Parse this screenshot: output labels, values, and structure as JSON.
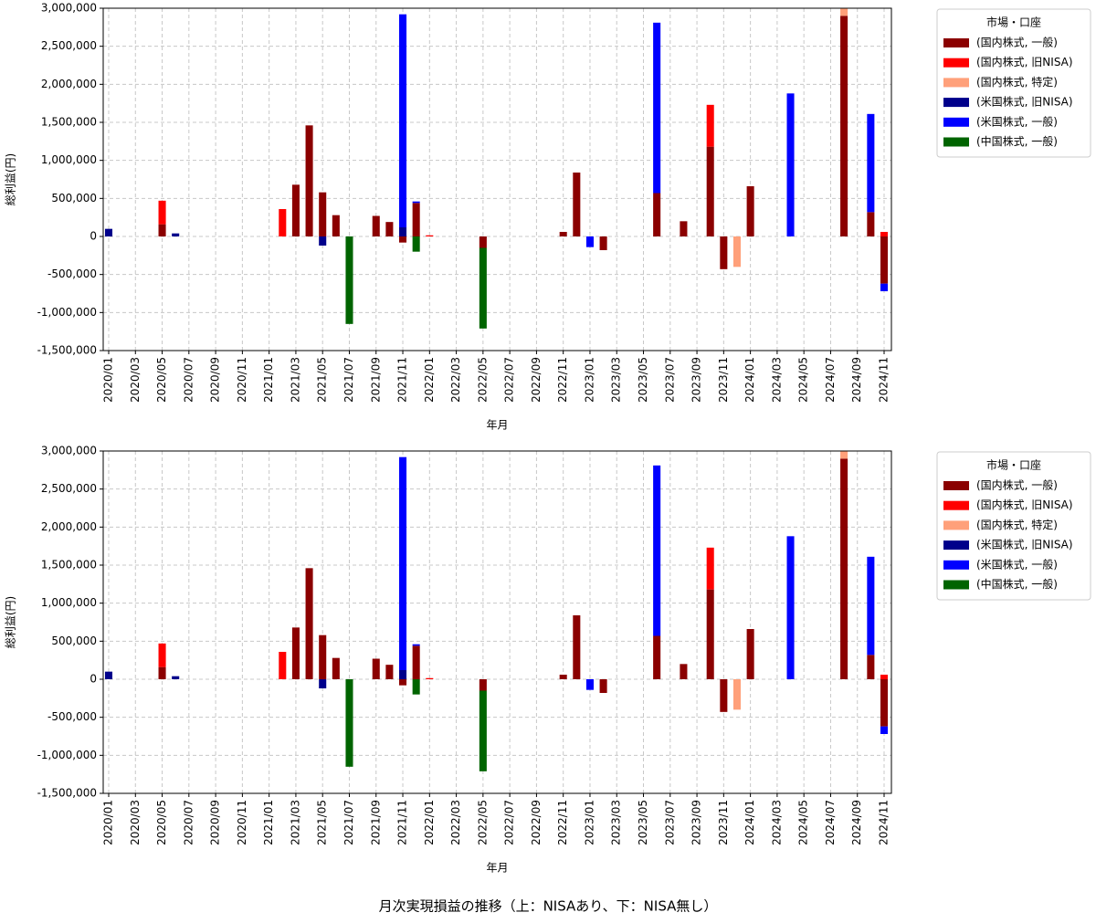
{
  "title": "月次実現損益の推移（上：NISAあり、下：NISA無し）",
  "chart_data": [
    {
      "type": "bar",
      "stacked": true,
      "xlabel": "年月",
      "ylabel": "総利益(円)",
      "legend_title": "市場・口座",
      "grid": true,
      "legend": "outside-right",
      "categories": [
        "2020/01",
        null,
        "2020/03",
        null,
        "2020/05",
        null,
        "2020/07",
        null,
        "2020/09",
        null,
        "2020/11",
        null,
        "2021/01",
        null,
        "2021/03",
        null,
        "2021/05",
        null,
        "2021/07",
        null,
        "2021/09",
        null,
        "2021/11",
        null,
        "2022/01",
        null,
        "2022/03",
        null,
        "2022/05",
        null,
        "2022/07",
        null,
        "2022/09",
        null,
        "2022/11",
        null,
        "2023/01",
        null,
        "2023/03",
        null,
        "2023/05",
        null,
        "2023/07",
        null,
        "2023/09",
        null,
        "2023/11",
        null,
        "2024/01",
        null,
        "2024/03",
        null,
        "2024/05",
        null,
        "2024/07",
        null,
        "2024/09",
        null,
        "2024/11"
      ],
      "ylim": [
        -1500000,
        3000000
      ],
      "yticks": [
        {
          "value": -1500000,
          "label": "-1,500,000"
        },
        {
          "value": -1000000,
          "label": "-1,000,000"
        },
        {
          "value": -500000,
          "label": "-500,000"
        },
        0,
        {
          "value": 500000,
          "label": "500,000"
        },
        {
          "value": 1000000,
          "label": "1,000,000"
        },
        {
          "value": 1500000,
          "label": "1,500,000"
        },
        {
          "value": 2000000,
          "label": "2,000,000"
        },
        {
          "value": 2500000,
          "label": "2,500,000"
        },
        {
          "value": 3000000,
          "label": "3,000,000"
        }
      ],
      "series": [
        {
          "name": "(国内株式, 一般)",
          "color": "#8b0000",
          "values": [
            0,
            0,
            0,
            0,
            160000,
            0,
            0,
            0,
            0,
            0,
            0,
            0,
            0,
            0,
            680000,
            1460000,
            580000,
            280000,
            0,
            0,
            270000,
            190000,
            -80000,
            440000,
            0,
            0,
            0,
            0,
            -150000,
            0,
            0,
            0,
            0,
            0,
            60000,
            840000,
            0,
            -180000,
            0,
            0,
            0,
            570000,
            0,
            200000,
            0,
            1180000,
            -430000,
            0,
            660000,
            0,
            0,
            0,
            0,
            0,
            0,
            2900000,
            0,
            320000,
            -620000
          ]
        },
        {
          "name": "(国内株式, 旧NISA)",
          "color": "#ff0000",
          "values": [
            0,
            0,
            0,
            0,
            310000,
            0,
            0,
            0,
            0,
            0,
            0,
            0,
            0,
            360000,
            0,
            0,
            0,
            0,
            0,
            0,
            0,
            0,
            0,
            0,
            15000,
            0,
            0,
            0,
            0,
            0,
            0,
            0,
            0,
            0,
            0,
            0,
            0,
            0,
            0,
            0,
            0,
            0,
            0,
            0,
            0,
            550000,
            0,
            0,
            0,
            0,
            0,
            0,
            0,
            0,
            0,
            0,
            0,
            0,
            60000
          ]
        },
        {
          "name": "(国内株式, 特定)",
          "color": "#ffa07a",
          "values": [
            0,
            0,
            0,
            0,
            0,
            0,
            0,
            0,
            0,
            0,
            0,
            0,
            0,
            0,
            0,
            0,
            0,
            0,
            0,
            0,
            0,
            0,
            0,
            0,
            0,
            0,
            0,
            0,
            0,
            0,
            0,
            0,
            0,
            0,
            0,
            0,
            0,
            0,
            0,
            0,
            0,
            0,
            0,
            0,
            0,
            0,
            0,
            -400000,
            0,
            0,
            0,
            0,
            0,
            0,
            0,
            150000,
            0,
            0,
            0
          ]
        },
        {
          "name": "(米国株式, 旧NISA)",
          "color": "#00008b",
          "values": [
            100000,
            0,
            0,
            0,
            0,
            40000,
            0,
            0,
            0,
            0,
            0,
            0,
            0,
            0,
            0,
            0,
            -120000,
            0,
            0,
            0,
            0,
            0,
            120000,
            0,
            0,
            0,
            0,
            0,
            0,
            0,
            0,
            0,
            0,
            0,
            0,
            0,
            0,
            0,
            0,
            0,
            0,
            0,
            0,
            0,
            0,
            0,
            0,
            0,
            0,
            0,
            0,
            0,
            0,
            0,
            0,
            0,
            0,
            0,
            0
          ]
        },
        {
          "name": "(米国株式, 一般)",
          "color": "#0000ff",
          "values": [
            0,
            0,
            0,
            0,
            0,
            0,
            0,
            0,
            0,
            0,
            0,
            0,
            0,
            0,
            0,
            0,
            0,
            0,
            0,
            0,
            0,
            0,
            2800000,
            20000,
            0,
            0,
            0,
            0,
            0,
            0,
            0,
            0,
            0,
            0,
            0,
            0,
            -140000,
            0,
            0,
            0,
            0,
            2240000,
            0,
            0,
            0,
            0,
            0,
            0,
            0,
            0,
            0,
            1880000,
            0,
            0,
            0,
            0,
            0,
            1290000,
            -100000
          ]
        },
        {
          "name": "(中国株式, 一般)",
          "color": "#006400",
          "values": [
            0,
            0,
            0,
            0,
            0,
            0,
            0,
            0,
            0,
            0,
            0,
            0,
            0,
            0,
            0,
            0,
            0,
            0,
            -1150000,
            0,
            0,
            0,
            0,
            -200000,
            0,
            0,
            0,
            0,
            -1060000,
            0,
            0,
            0,
            0,
            0,
            0,
            0,
            0,
            0,
            0,
            0,
            0,
            0,
            0,
            0,
            0,
            0,
            0,
            0,
            0,
            0,
            0,
            0,
            0,
            0,
            0,
            0,
            0,
            0,
            0
          ]
        }
      ]
    },
    {
      "type": "bar",
      "stacked": true,
      "xlabel": "年月",
      "ylabel": "総利益(円)",
      "legend_title": "市場・口座",
      "grid": true,
      "legend": "outside-right",
      "categories": [
        "2020/01",
        null,
        "2020/03",
        null,
        "2020/05",
        null,
        "2020/07",
        null,
        "2020/09",
        null,
        "2020/11",
        null,
        "2021/01",
        null,
        "2021/03",
        null,
        "2021/05",
        null,
        "2021/07",
        null,
        "2021/09",
        null,
        "2021/11",
        null,
        "2022/01",
        null,
        "2022/03",
        null,
        "2022/05",
        null,
        "2022/07",
        null,
        "2022/09",
        null,
        "2022/11",
        null,
        "2023/01",
        null,
        "2023/03",
        null,
        "2023/05",
        null,
        "2023/07",
        null,
        "2023/09",
        null,
        "2023/11",
        null,
        "2024/01",
        null,
        "2024/03",
        null,
        "2024/05",
        null,
        "2024/07",
        null,
        "2024/09",
        null,
        "2024/11"
      ],
      "ylim": [
        -1500000,
        3000000
      ],
      "yticks": [
        {
          "value": -1500000,
          "label": "-1,500,000"
        },
        {
          "value": -1000000,
          "label": "-1,000,000"
        },
        {
          "value": -500000,
          "label": "-500,000"
        },
        0,
        {
          "value": 500000,
          "label": "500,000"
        },
        {
          "value": 1000000,
          "label": "1,000,000"
        },
        {
          "value": 1500000,
          "label": "1,500,000"
        },
        {
          "value": 2000000,
          "label": "2,000,000"
        },
        {
          "value": 2500000,
          "label": "2,500,000"
        },
        {
          "value": 3000000,
          "label": "3,000,000"
        }
      ],
      "series": [
        {
          "name": "(国内株式, 一般)",
          "color": "#8b0000",
          "values": [
            0,
            0,
            0,
            0,
            160000,
            0,
            0,
            0,
            0,
            0,
            0,
            0,
            0,
            0,
            680000,
            1460000,
            580000,
            280000,
            0,
            0,
            270000,
            190000,
            -80000,
            440000,
            0,
            0,
            0,
            0,
            -150000,
            0,
            0,
            0,
            0,
            0,
            60000,
            840000,
            0,
            -180000,
            0,
            0,
            0,
            570000,
            0,
            200000,
            0,
            1180000,
            -430000,
            0,
            660000,
            0,
            0,
            0,
            0,
            0,
            0,
            2900000,
            0,
            320000,
            -620000
          ]
        },
        {
          "name": "(国内株式, 旧NISA)",
          "color": "#ff0000",
          "values": [
            0,
            0,
            0,
            0,
            310000,
            0,
            0,
            0,
            0,
            0,
            0,
            0,
            0,
            360000,
            0,
            0,
            0,
            0,
            0,
            0,
            0,
            0,
            0,
            0,
            15000,
            0,
            0,
            0,
            0,
            0,
            0,
            0,
            0,
            0,
            0,
            0,
            0,
            0,
            0,
            0,
            0,
            0,
            0,
            0,
            0,
            550000,
            0,
            0,
            0,
            0,
            0,
            0,
            0,
            0,
            0,
            0,
            0,
            0,
            60000
          ]
        },
        {
          "name": "(国内株式, 特定)",
          "color": "#ffa07a",
          "values": [
            0,
            0,
            0,
            0,
            0,
            0,
            0,
            0,
            0,
            0,
            0,
            0,
            0,
            0,
            0,
            0,
            0,
            0,
            0,
            0,
            0,
            0,
            0,
            0,
            0,
            0,
            0,
            0,
            0,
            0,
            0,
            0,
            0,
            0,
            0,
            0,
            0,
            0,
            0,
            0,
            0,
            0,
            0,
            0,
            0,
            0,
            0,
            -400000,
            0,
            0,
            0,
            0,
            0,
            0,
            0,
            150000,
            0,
            0,
            0
          ]
        },
        {
          "name": "(米国株式, 旧NISA)",
          "color": "#00008b",
          "values": [
            100000,
            0,
            0,
            0,
            0,
            40000,
            0,
            0,
            0,
            0,
            0,
            0,
            0,
            0,
            0,
            0,
            -120000,
            0,
            0,
            0,
            0,
            0,
            120000,
            0,
            0,
            0,
            0,
            0,
            0,
            0,
            0,
            0,
            0,
            0,
            0,
            0,
            0,
            0,
            0,
            0,
            0,
            0,
            0,
            0,
            0,
            0,
            0,
            0,
            0,
            0,
            0,
            0,
            0,
            0,
            0,
            0,
            0,
            0,
            0
          ]
        },
        {
          "name": "(米国株式, 一般)",
          "color": "#0000ff",
          "values": [
            0,
            0,
            0,
            0,
            0,
            0,
            0,
            0,
            0,
            0,
            0,
            0,
            0,
            0,
            0,
            0,
            0,
            0,
            0,
            0,
            0,
            0,
            2800000,
            20000,
            0,
            0,
            0,
            0,
            0,
            0,
            0,
            0,
            0,
            0,
            0,
            0,
            -140000,
            0,
            0,
            0,
            0,
            2240000,
            0,
            0,
            0,
            0,
            0,
            0,
            0,
            0,
            0,
            1880000,
            0,
            0,
            0,
            0,
            0,
            1290000,
            -100000
          ]
        },
        {
          "name": "(中国株式, 一般)",
          "color": "#006400",
          "values": [
            0,
            0,
            0,
            0,
            0,
            0,
            0,
            0,
            0,
            0,
            0,
            0,
            0,
            0,
            0,
            0,
            0,
            0,
            -1150000,
            0,
            0,
            0,
            0,
            -200000,
            0,
            0,
            0,
            0,
            -1060000,
            0,
            0,
            0,
            0,
            0,
            0,
            0,
            0,
            0,
            0,
            0,
            0,
            0,
            0,
            0,
            0,
            0,
            0,
            0,
            0,
            0,
            0,
            0,
            0,
            0,
            0,
            0,
            0,
            0,
            0
          ]
        }
      ]
    }
  ]
}
